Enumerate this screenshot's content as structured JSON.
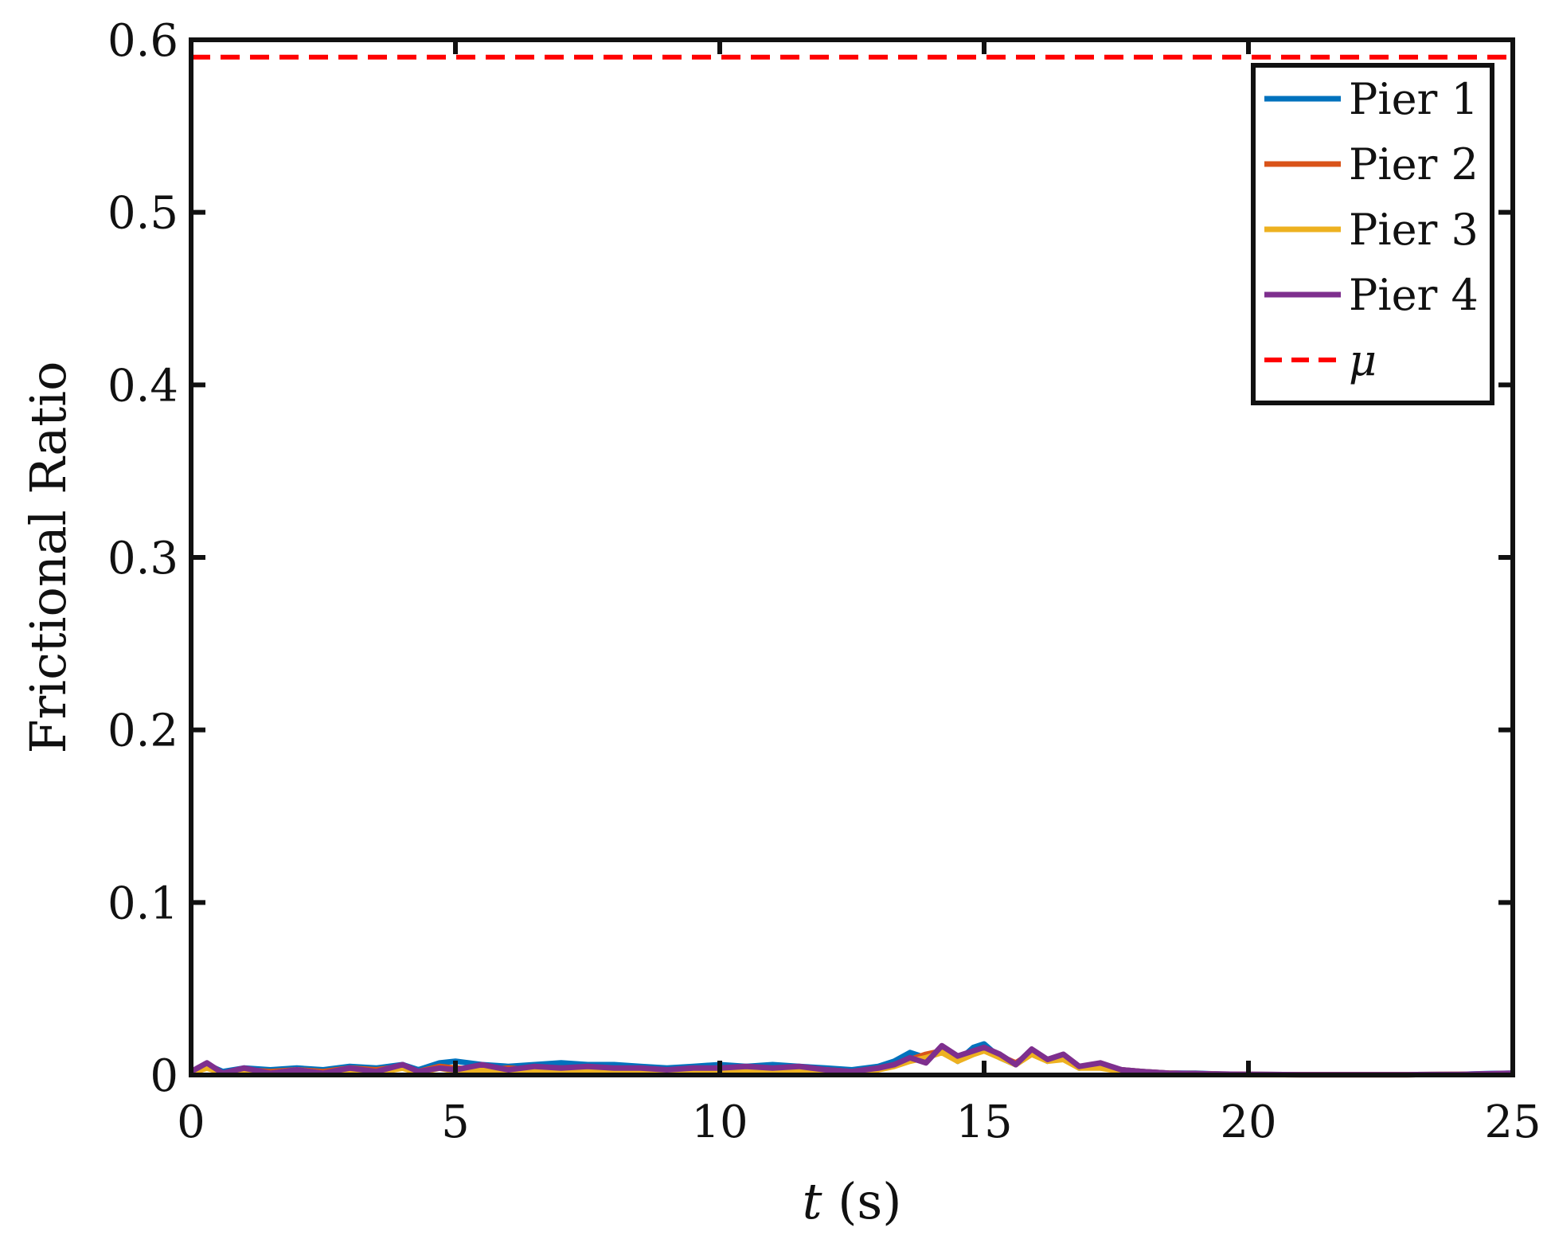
{
  "chart_data": {
    "type": "line",
    "xlabel_var": "t",
    "xlabel_unit": " (s)",
    "ylabel": "Frictional Ratio",
    "xlim": [
      0,
      25
    ],
    "ylim": [
      0,
      0.6
    ],
    "xticks": [
      0,
      5,
      10,
      15,
      20,
      25
    ],
    "xtick_labels": [
      "0",
      "5",
      "10",
      "15",
      "20",
      "25"
    ],
    "yticks": [
      0,
      0.1,
      0.2,
      0.3,
      0.4,
      0.5,
      0.6
    ],
    "ytick_labels": [
      "0",
      "0.1",
      "0.2",
      "0.3",
      "0.4",
      "0.5",
      "0.6"
    ],
    "grid": false,
    "legend_position": "top-right",
    "series": [
      {
        "name": "Pier 1",
        "color": "#0072BD",
        "style": "solid",
        "x": [
          0,
          0.3,
          0.6,
          1.0,
          1.5,
          2.0,
          2.5,
          3.0,
          3.5,
          4.0,
          4.3,
          4.7,
          5.0,
          5.5,
          6.0,
          6.5,
          7.0,
          7.5,
          8.0,
          8.5,
          9.0,
          9.5,
          10.0,
          10.5,
          11.0,
          11.5,
          12.0,
          12.5,
          13.0,
          13.3,
          13.6,
          13.9,
          14.2,
          14.5,
          14.8,
          15.0,
          15.3,
          15.6,
          15.9,
          16.2,
          16.5,
          16.8,
          17.2,
          17.6,
          18.0,
          18.5,
          19.0,
          19.5,
          20.0,
          21.0,
          22.0,
          23.0,
          24.0,
          24.5,
          25.0
        ],
        "y": [
          0.001,
          0.006,
          0.002,
          0.004,
          0.003,
          0.004,
          0.003,
          0.005,
          0.004,
          0.006,
          0.003,
          0.007,
          0.008,
          0.006,
          0.005,
          0.006,
          0.007,
          0.006,
          0.006,
          0.005,
          0.004,
          0.005,
          0.006,
          0.005,
          0.006,
          0.005,
          0.004,
          0.003,
          0.005,
          0.008,
          0.013,
          0.01,
          0.015,
          0.008,
          0.016,
          0.018,
          0.01,
          0.006,
          0.014,
          0.008,
          0.011,
          0.004,
          0.006,
          0.003,
          0.002,
          0.001,
          0.001,
          0.0005,
          0.0003,
          0.0002,
          0.0002,
          0.0002,
          0.0003,
          0.0008,
          0.001
        ]
      },
      {
        "name": "Pier 2",
        "color": "#D95319",
        "style": "solid",
        "x": [
          0,
          0.3,
          0.6,
          1.0,
          1.5,
          2.0,
          2.5,
          3.0,
          3.5,
          4.0,
          4.3,
          4.7,
          5.0,
          5.5,
          6.0,
          6.5,
          7.0,
          7.5,
          8.0,
          8.5,
          9.0,
          9.5,
          10.0,
          10.5,
          11.0,
          11.5,
          12.0,
          12.5,
          13.0,
          13.3,
          13.6,
          13.9,
          14.2,
          14.5,
          14.8,
          15.0,
          15.3,
          15.6,
          15.9,
          16.2,
          16.5,
          16.8,
          17.2,
          17.6,
          18.0,
          18.5,
          19.0,
          19.5,
          20.0,
          21.0,
          22.0,
          23.0,
          24.0,
          24.5,
          25.0
        ],
        "y": [
          0.001,
          0.005,
          0.001,
          0.003,
          0.002,
          0.003,
          0.002,
          0.004,
          0.003,
          0.005,
          0.002,
          0.005,
          0.004,
          0.003,
          0.004,
          0.003,
          0.004,
          0.003,
          0.003,
          0.002,
          0.003,
          0.002,
          0.003,
          0.004,
          0.003,
          0.004,
          0.003,
          0.002,
          0.004,
          0.006,
          0.009,
          0.012,
          0.014,
          0.009,
          0.013,
          0.015,
          0.011,
          0.007,
          0.013,
          0.009,
          0.01,
          0.005,
          0.005,
          0.003,
          0.002,
          0.001,
          0.0008,
          0.0005,
          0.0003,
          0.0002,
          0.0002,
          0.0002,
          0.0003,
          0.0006,
          0.0009
        ]
      },
      {
        "name": "Pier 3",
        "color": "#EDB120",
        "style": "solid",
        "x": [
          0,
          0.3,
          0.6,
          1.0,
          1.5,
          2.0,
          2.5,
          3.0,
          3.5,
          4.0,
          4.3,
          4.7,
          5.0,
          5.5,
          6.0,
          6.5,
          7.0,
          7.5,
          8.0,
          8.5,
          9.0,
          9.5,
          10.0,
          10.5,
          11.0,
          11.5,
          12.0,
          12.5,
          13.0,
          13.3,
          13.6,
          13.9,
          14.2,
          14.5,
          14.8,
          15.0,
          15.3,
          15.6,
          15.9,
          16.2,
          16.5,
          16.8,
          17.2,
          17.6,
          18.0,
          18.5,
          19.0,
          19.5,
          20.0,
          21.0,
          22.0,
          23.0,
          24.0,
          24.5,
          25.0
        ],
        "y": [
          0.001,
          0.004,
          0.001,
          0.003,
          0.001,
          0.003,
          0.001,
          0.003,
          0.001,
          0.004,
          0.001,
          0.004,
          0.002,
          0.003,
          0.002,
          0.003,
          0.002,
          0.003,
          0.002,
          0.001,
          0.002,
          0.001,
          0.002,
          0.003,
          0.002,
          0.003,
          0.002,
          0.001,
          0.003,
          0.005,
          0.008,
          0.01,
          0.013,
          0.008,
          0.012,
          0.014,
          0.01,
          0.006,
          0.012,
          0.008,
          0.009,
          0.004,
          0.004,
          0.002,
          0.001,
          0.001,
          0.0007,
          0.0004,
          0.0002,
          0.0002,
          0.0002,
          0.0002,
          0.0003,
          0.0005,
          0.0008
        ]
      },
      {
        "name": "Pier 4",
        "color": "#7E2F8E",
        "style": "solid",
        "x": [
          0,
          0.3,
          0.6,
          1.0,
          1.5,
          2.0,
          2.5,
          3.0,
          3.5,
          4.0,
          4.3,
          4.7,
          5.0,
          5.5,
          6.0,
          6.5,
          7.0,
          7.5,
          8.0,
          8.5,
          9.0,
          9.5,
          10.0,
          10.5,
          11.0,
          11.5,
          12.0,
          12.5,
          13.0,
          13.3,
          13.6,
          13.9,
          14.2,
          14.5,
          14.8,
          15.0,
          15.3,
          15.6,
          15.9,
          16.2,
          16.5,
          16.8,
          17.2,
          17.6,
          18.0,
          18.5,
          19.0,
          19.5,
          20.0,
          21.0,
          22.0,
          23.0,
          24.0,
          24.5,
          25.0
        ],
        "y": [
          0.002,
          0.007,
          0.001,
          0.004,
          0.001,
          0.003,
          0.001,
          0.004,
          0.002,
          0.006,
          0.002,
          0.004,
          0.003,
          0.006,
          0.003,
          0.005,
          0.004,
          0.005,
          0.004,
          0.004,
          0.003,
          0.004,
          0.004,
          0.005,
          0.004,
          0.005,
          0.003,
          0.002,
          0.004,
          0.006,
          0.01,
          0.007,
          0.017,
          0.011,
          0.014,
          0.016,
          0.012,
          0.006,
          0.015,
          0.009,
          0.012,
          0.005,
          0.007,
          0.003,
          0.002,
          0.001,
          0.0008,
          0.0005,
          0.0003,
          0.0002,
          0.0002,
          0.0002,
          0.0003,
          0.0007,
          0.001
        ]
      },
      {
        "name": "μ",
        "color": "#FF0000",
        "style": "dashed",
        "x": [
          0,
          25
        ],
        "y": [
          0.59,
          0.59
        ]
      }
    ]
  }
}
